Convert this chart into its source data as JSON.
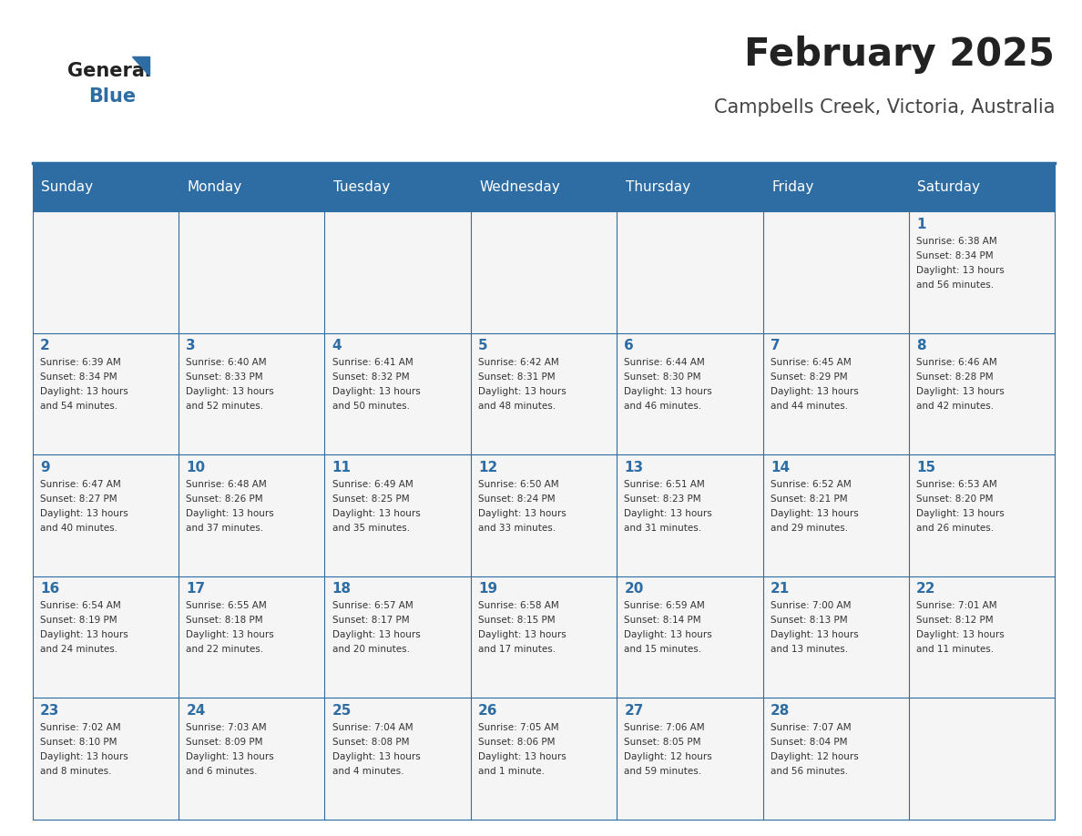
{
  "title": "February 2025",
  "subtitle": "Campbells Creek, Victoria, Australia",
  "days_of_week": [
    "Sunday",
    "Monday",
    "Tuesday",
    "Wednesday",
    "Thursday",
    "Friday",
    "Saturday"
  ],
  "header_bg": "#2E6DA4",
  "header_text_color": "#FFFFFF",
  "cell_bg": "#F5F5F5",
  "border_color": "#2E6DA4",
  "day_number_color": "#2E6DA4",
  "text_color": "#333333",
  "title_color": "#222222",
  "subtitle_color": "#444444",
  "logo_general_color": "#222222",
  "logo_blue_color": "#2E6DA4",
  "weeks": [
    [
      {
        "day": null,
        "info": ""
      },
      {
        "day": null,
        "info": ""
      },
      {
        "day": null,
        "info": ""
      },
      {
        "day": null,
        "info": ""
      },
      {
        "day": null,
        "info": ""
      },
      {
        "day": null,
        "info": ""
      },
      {
        "day": 1,
        "info": "Sunrise: 6:38 AM\nSunset: 8:34 PM\nDaylight: 13 hours\nand 56 minutes."
      }
    ],
    [
      {
        "day": 2,
        "info": "Sunrise: 6:39 AM\nSunset: 8:34 PM\nDaylight: 13 hours\nand 54 minutes."
      },
      {
        "day": 3,
        "info": "Sunrise: 6:40 AM\nSunset: 8:33 PM\nDaylight: 13 hours\nand 52 minutes."
      },
      {
        "day": 4,
        "info": "Sunrise: 6:41 AM\nSunset: 8:32 PM\nDaylight: 13 hours\nand 50 minutes."
      },
      {
        "day": 5,
        "info": "Sunrise: 6:42 AM\nSunset: 8:31 PM\nDaylight: 13 hours\nand 48 minutes."
      },
      {
        "day": 6,
        "info": "Sunrise: 6:44 AM\nSunset: 8:30 PM\nDaylight: 13 hours\nand 46 minutes."
      },
      {
        "day": 7,
        "info": "Sunrise: 6:45 AM\nSunset: 8:29 PM\nDaylight: 13 hours\nand 44 minutes."
      },
      {
        "day": 8,
        "info": "Sunrise: 6:46 AM\nSunset: 8:28 PM\nDaylight: 13 hours\nand 42 minutes."
      }
    ],
    [
      {
        "day": 9,
        "info": "Sunrise: 6:47 AM\nSunset: 8:27 PM\nDaylight: 13 hours\nand 40 minutes."
      },
      {
        "day": 10,
        "info": "Sunrise: 6:48 AM\nSunset: 8:26 PM\nDaylight: 13 hours\nand 37 minutes."
      },
      {
        "day": 11,
        "info": "Sunrise: 6:49 AM\nSunset: 8:25 PM\nDaylight: 13 hours\nand 35 minutes."
      },
      {
        "day": 12,
        "info": "Sunrise: 6:50 AM\nSunset: 8:24 PM\nDaylight: 13 hours\nand 33 minutes."
      },
      {
        "day": 13,
        "info": "Sunrise: 6:51 AM\nSunset: 8:23 PM\nDaylight: 13 hours\nand 31 minutes."
      },
      {
        "day": 14,
        "info": "Sunrise: 6:52 AM\nSunset: 8:21 PM\nDaylight: 13 hours\nand 29 minutes."
      },
      {
        "day": 15,
        "info": "Sunrise: 6:53 AM\nSunset: 8:20 PM\nDaylight: 13 hours\nand 26 minutes."
      }
    ],
    [
      {
        "day": 16,
        "info": "Sunrise: 6:54 AM\nSunset: 8:19 PM\nDaylight: 13 hours\nand 24 minutes."
      },
      {
        "day": 17,
        "info": "Sunrise: 6:55 AM\nSunset: 8:18 PM\nDaylight: 13 hours\nand 22 minutes."
      },
      {
        "day": 18,
        "info": "Sunrise: 6:57 AM\nSunset: 8:17 PM\nDaylight: 13 hours\nand 20 minutes."
      },
      {
        "day": 19,
        "info": "Sunrise: 6:58 AM\nSunset: 8:15 PM\nDaylight: 13 hours\nand 17 minutes."
      },
      {
        "day": 20,
        "info": "Sunrise: 6:59 AM\nSunset: 8:14 PM\nDaylight: 13 hours\nand 15 minutes."
      },
      {
        "day": 21,
        "info": "Sunrise: 7:00 AM\nSunset: 8:13 PM\nDaylight: 13 hours\nand 13 minutes."
      },
      {
        "day": 22,
        "info": "Sunrise: 7:01 AM\nSunset: 8:12 PM\nDaylight: 13 hours\nand 11 minutes."
      }
    ],
    [
      {
        "day": 23,
        "info": "Sunrise: 7:02 AM\nSunset: 8:10 PM\nDaylight: 13 hours\nand 8 minutes."
      },
      {
        "day": 24,
        "info": "Sunrise: 7:03 AM\nSunset: 8:09 PM\nDaylight: 13 hours\nand 6 minutes."
      },
      {
        "day": 25,
        "info": "Sunrise: 7:04 AM\nSunset: 8:08 PM\nDaylight: 13 hours\nand 4 minutes."
      },
      {
        "day": 26,
        "info": "Sunrise: 7:05 AM\nSunset: 8:06 PM\nDaylight: 13 hours\nand 1 minute."
      },
      {
        "day": 27,
        "info": "Sunrise: 7:06 AM\nSunset: 8:05 PM\nDaylight: 12 hours\nand 59 minutes."
      },
      {
        "day": 28,
        "info": "Sunrise: 7:07 AM\nSunset: 8:04 PM\nDaylight: 12 hours\nand 56 minutes."
      },
      {
        "day": null,
        "info": ""
      }
    ]
  ]
}
